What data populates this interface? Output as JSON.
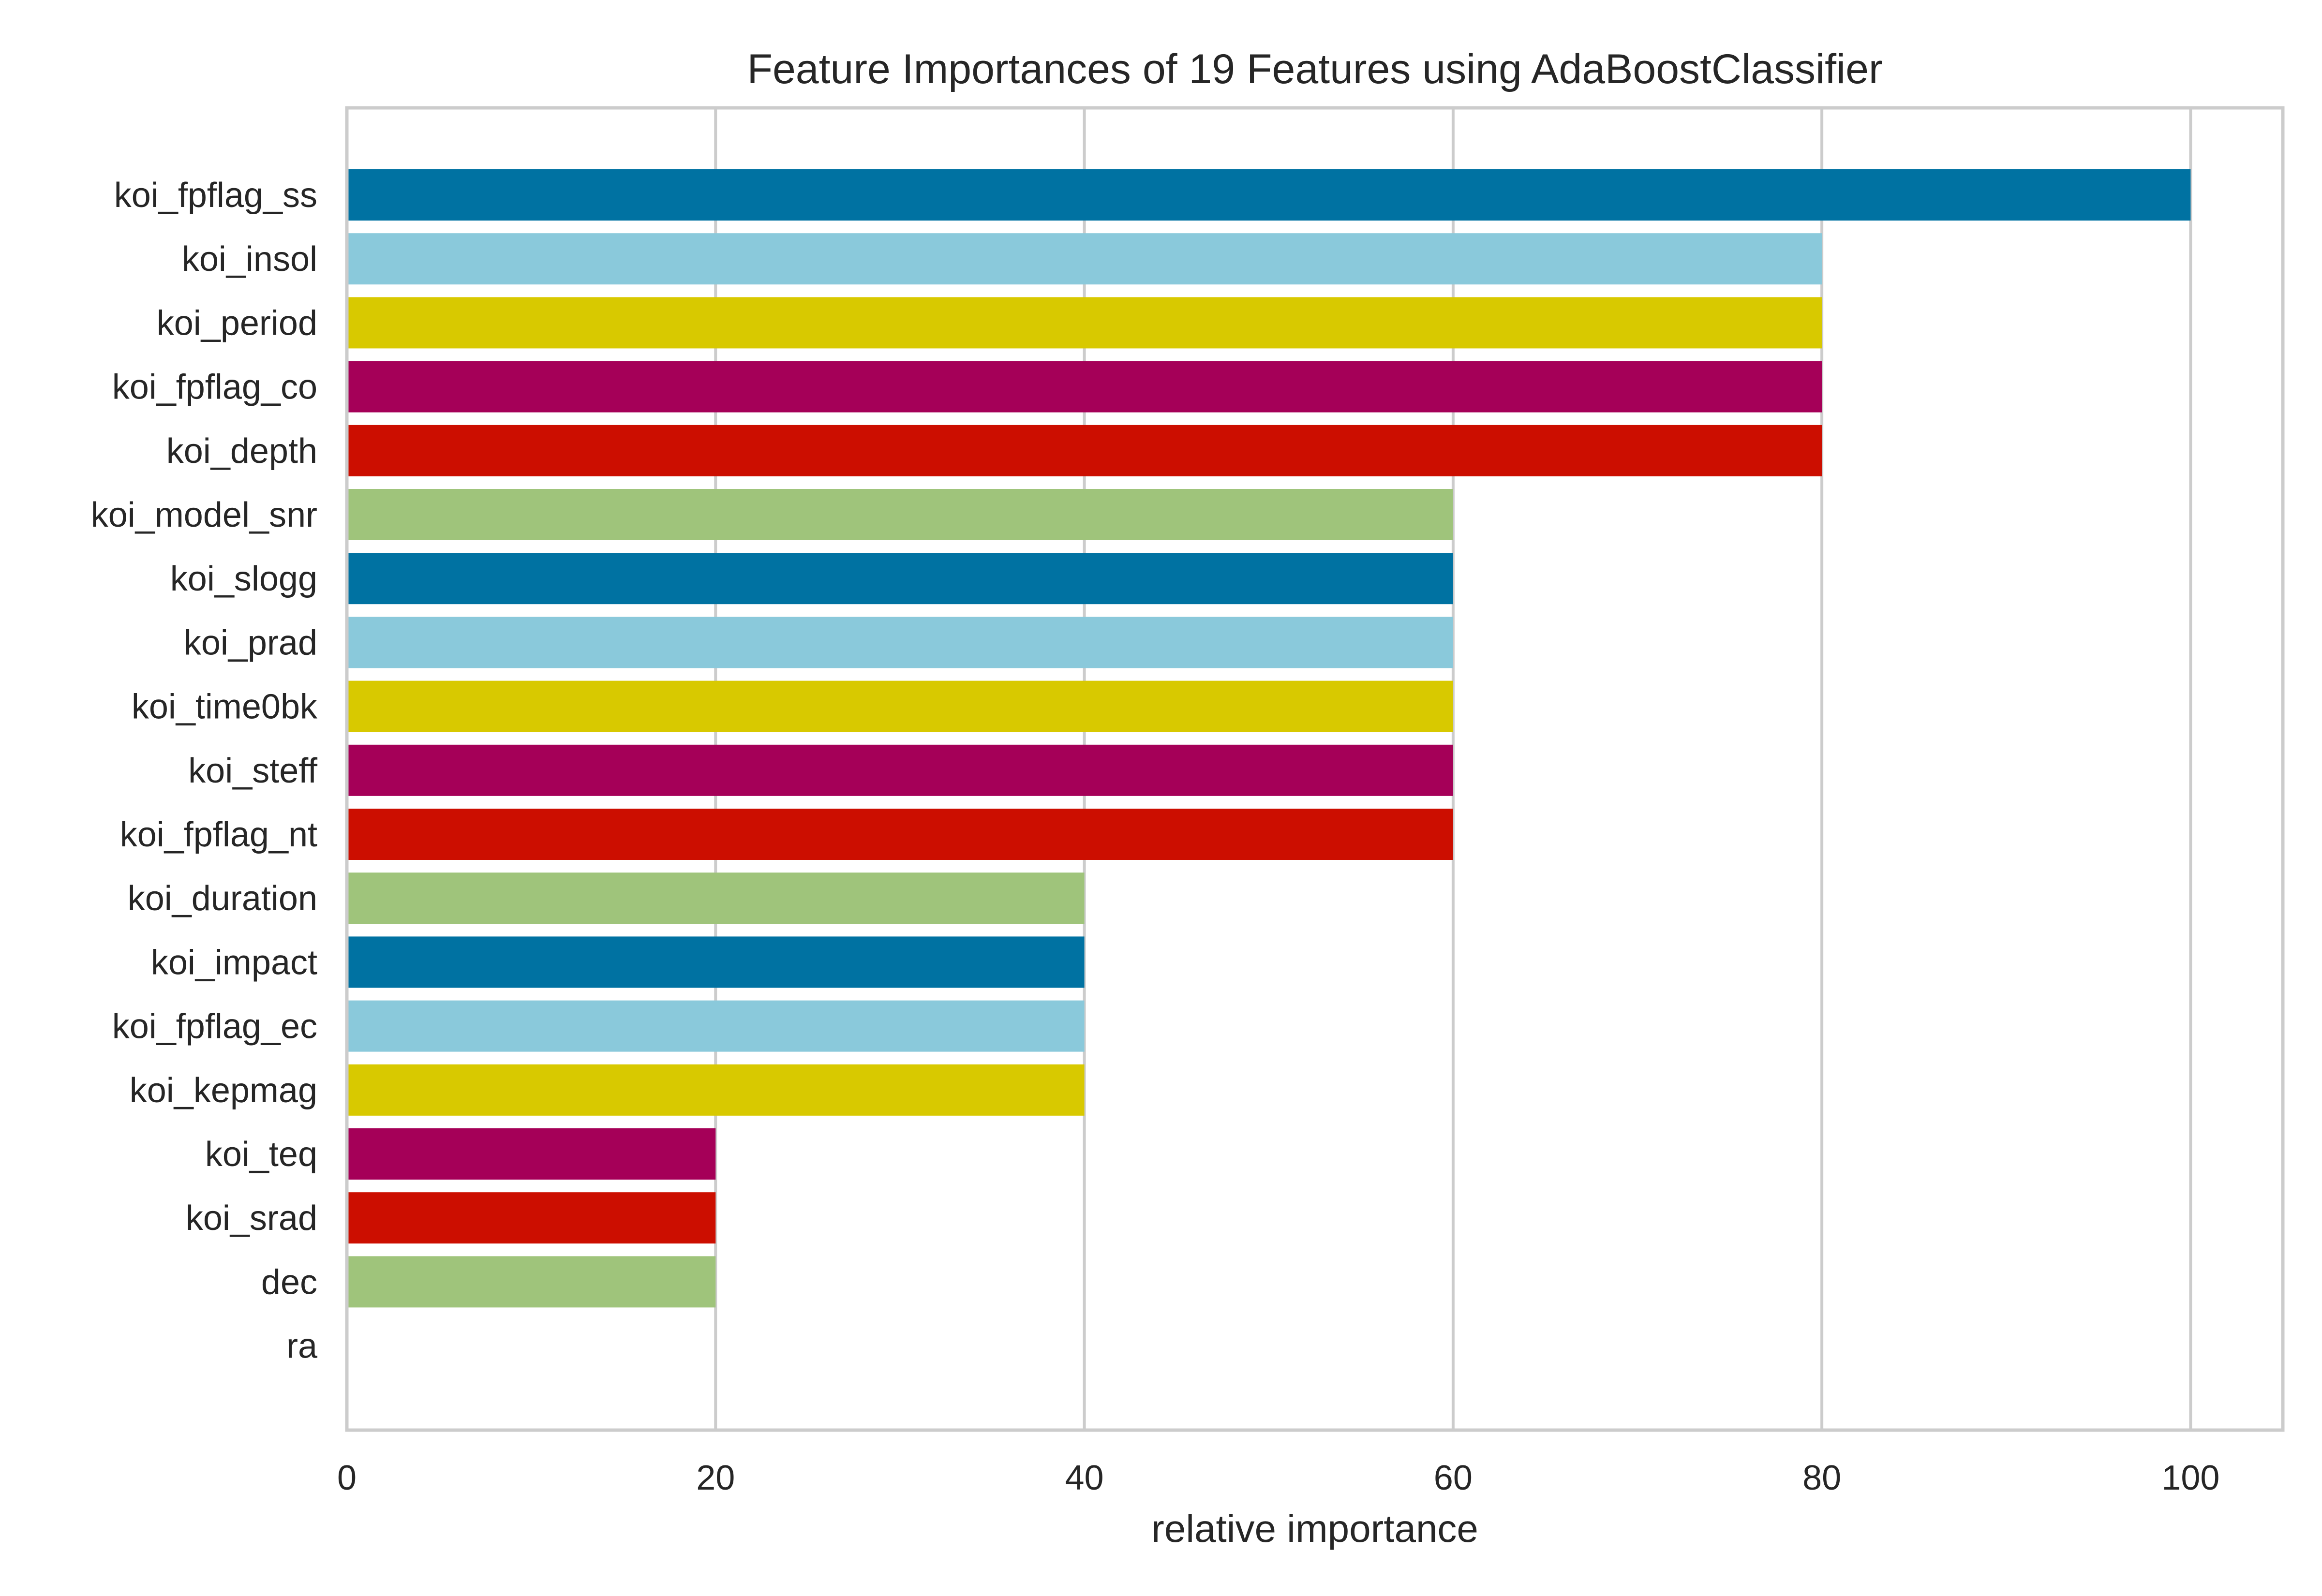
{
  "chart_data": {
    "type": "bar",
    "orientation": "horizontal",
    "title": "Feature Importances of 19 Features using AdaBoostClassifier",
    "xlabel": "relative importance",
    "ylabel": "",
    "xlim": [
      0,
      105
    ],
    "xticks": [
      0,
      20,
      40,
      60,
      80,
      100
    ],
    "grid": true,
    "categories": [
      "koi_fpflag_ss",
      "koi_insol",
      "koi_period",
      "koi_fpflag_co",
      "koi_depth",
      "koi_model_snr",
      "koi_slogg",
      "koi_prad",
      "koi_time0bk",
      "koi_steff",
      "koi_fpflag_nt",
      "koi_duration",
      "koi_impact",
      "koi_fpflag_ec",
      "koi_kepmag",
      "koi_teq",
      "koi_srad",
      "dec",
      "ra"
    ],
    "values": [
      100,
      80,
      80,
      80,
      80,
      60,
      60,
      60,
      60,
      60,
      60,
      40,
      40,
      40,
      40,
      20,
      20,
      20,
      0
    ],
    "colors": [
      "#0072A2",
      "#8AC9DB",
      "#D8C900",
      "#A50058",
      "#CC0E00",
      "#9FC47B",
      "#0072A2",
      "#8AC9DB",
      "#D8C900",
      "#A50058",
      "#CC0E00",
      "#9FC47B",
      "#0072A2",
      "#8AC9DB",
      "#D8C900",
      "#A50058",
      "#CC0E00",
      "#9FC47B",
      "#0072A2"
    ],
    "grid_color": "#CCCCCC",
    "frame_color": "#CCCCCC",
    "text_color": "#262626"
  }
}
